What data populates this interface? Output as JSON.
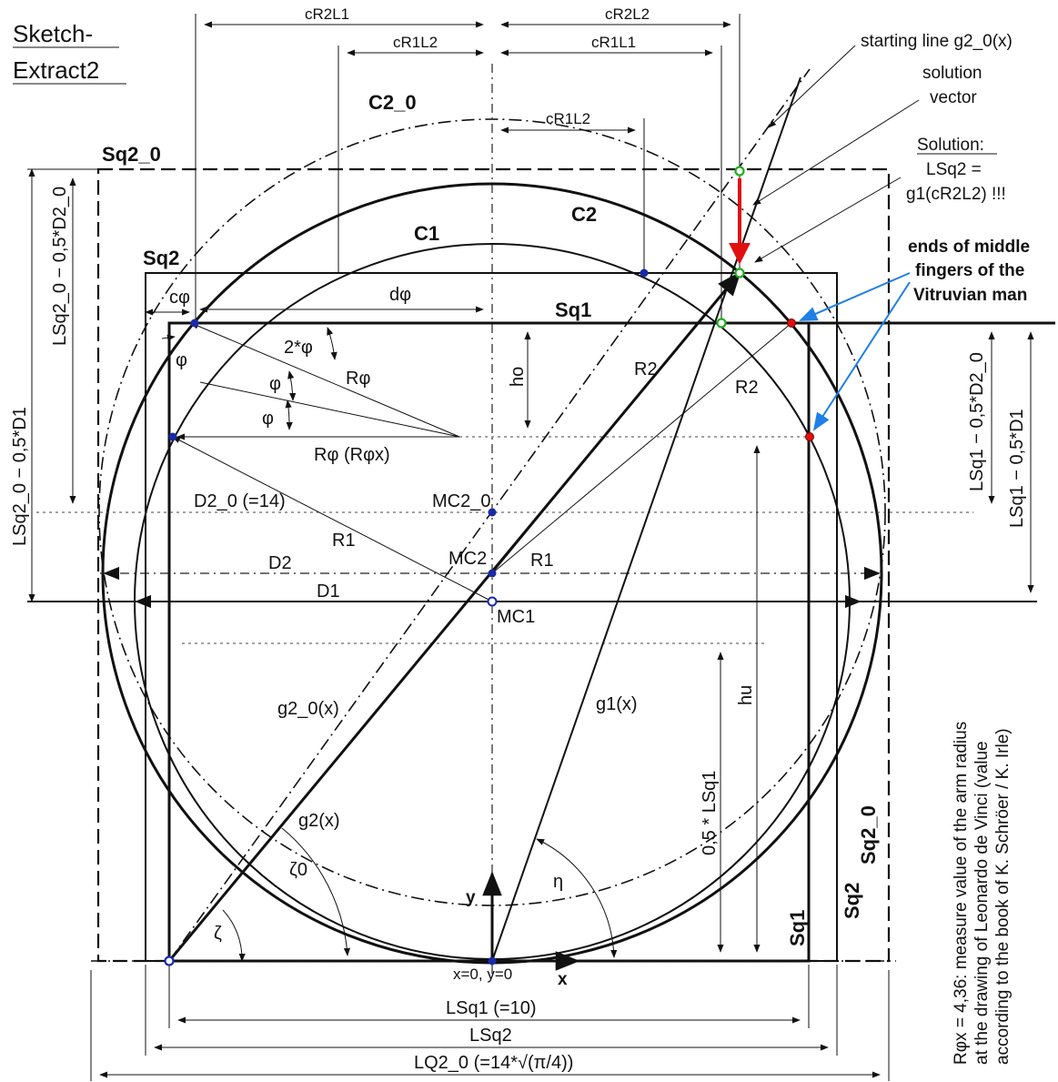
{
  "title": {
    "line1": "Sketch-",
    "line2": "Extract2"
  },
  "labels": {
    "cr2l1": "cR2L1",
    "cr2l2_top": "cR2L2",
    "cr1l2_top": "cR1L2",
    "cr1l1": "cR1L1",
    "cr1l2_mid": "cR1L2",
    "c2_0": "C2_0",
    "c2": "C2",
    "c1": "C1",
    "sq2_0_top": "Sq2_0",
    "sq2_top": "Sq2",
    "sq1_top": "Sq1",
    "c_phi": "cφ",
    "d_phi": "dφ",
    "two_phi": "2*φ",
    "phi_a": "φ",
    "phi_b": "φ",
    "phi_c": "φ",
    "r_phi": "Rφ",
    "r_phi_x": "Rφ  (Rφx)",
    "h_o": "ho",
    "r2_left": "R2",
    "r2_right": "R2",
    "d2_0": "D2_0 (=14)",
    "r1_left": "R1",
    "r1_right": "R1",
    "d2": "D2",
    "d1": "D1",
    "mc2_0": "MC2_0",
    "mc2": "MC2",
    "mc1": "MC1",
    "g2_0x": "g2_0(x)",
    "g1x": "g1(x)",
    "h_u": "hu",
    "half_lsq1": "0,5 * LSq1",
    "g2x": "g2(x)",
    "zeta0": "ζ0",
    "zeta": "ζ",
    "eta": "η",
    "y_axis": "y",
    "x_axis": "x",
    "origin": "x=0, y=0",
    "sq1_right": "Sq1",
    "sq2_right": "Sq2",
    "sq2_0_right": "Sq2_0",
    "l_sq1": "LSq1 (=10)",
    "l_sq2": "LSq2",
    "l_q2_0": "LQ2_0 (=14*√(π/4))",
    "left_outer": "LSq2_0 − 0,5*D1",
    "left_inner": "LSq2_0 − 0,5*D2_0",
    "right_inner": "LSq1 − 0,5*D2_0",
    "right_outer": "LSq1 − 0,5*D1"
  },
  "annotations": {
    "starting_line": "starting line g2_0(x)",
    "solution_vector_1": "solution",
    "solution_vector_2": "vector",
    "solution_heading": "Solution:",
    "solution_eq1": "LSq2 =",
    "solution_eq2": "g1(cR2L2) !!!",
    "ends_1": "ends of middle",
    "ends_2": "fingers of the",
    "ends_3": "Vitruvian man",
    "note_1": "Rφx = 4,36: measure value of the arm radius",
    "note_2": "at the drawing of Leonardo de Vinci (value",
    "note_3": "according to the book of K. Schröer / K. Irle)"
  },
  "colors": {
    "ink": "#111111",
    "solution_arrow": "#e01010",
    "highlight_green": "#1fae1f",
    "point_red": "#e01010",
    "point_blue": "#1a2aa8",
    "pointer_blue": "#1e7fe6"
  }
}
